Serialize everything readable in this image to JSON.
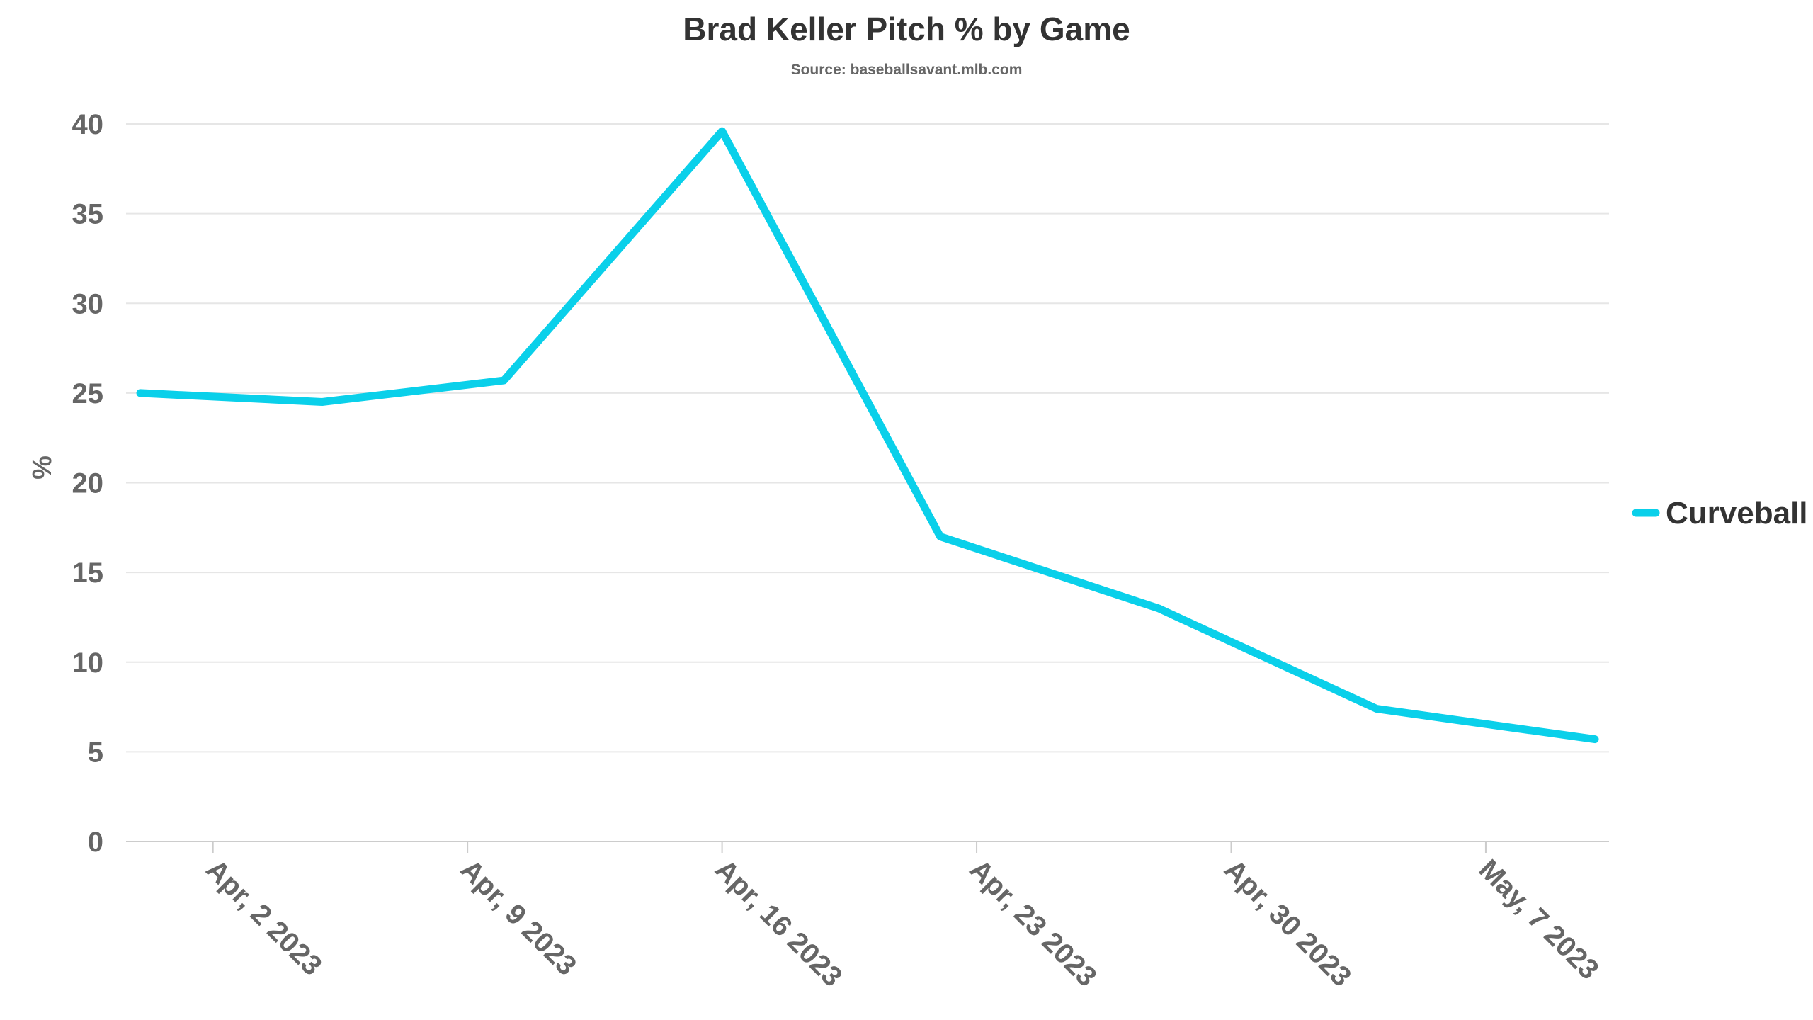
{
  "chart_data": {
    "type": "line",
    "title": "Brad Keller Pitch % by Game",
    "subtitle": "Source: baseballsavant.mlb.com",
    "xlabel": "",
    "ylabel": "%",
    "x_axis_type": "datetime",
    "xlim": [
      "2023-03-31",
      "2023-05-10"
    ],
    "ylim": [
      0,
      40
    ],
    "y_ticks": [
      0,
      5,
      10,
      15,
      20,
      25,
      30,
      35,
      40
    ],
    "x_ticks": [
      {
        "date": "2023-04-02",
        "label": "Apr, 2 2023"
      },
      {
        "date": "2023-04-09",
        "label": "Apr, 9 2023"
      },
      {
        "date": "2023-04-16",
        "label": "Apr, 16 2023"
      },
      {
        "date": "2023-04-23",
        "label": "Apr, 23 2023"
      },
      {
        "date": "2023-04-30",
        "label": "Apr, 30 2023"
      },
      {
        "date": "2023-05-07",
        "label": "May, 7 2023"
      }
    ],
    "grid": true,
    "legend_position": "right",
    "series": [
      {
        "name": "Curveball",
        "color": "#0ad0ea",
        "points": [
          {
            "x": "2023-03-31",
            "y": 25.0
          },
          {
            "x": "2023-04-05",
            "y": 24.5
          },
          {
            "x": "2023-04-10",
            "y": 25.7
          },
          {
            "x": "2023-04-16",
            "y": 39.6
          },
          {
            "x": "2023-04-22",
            "y": 17.0
          },
          {
            "x": "2023-04-28",
            "y": 13.0
          },
          {
            "x": "2023-05-04",
            "y": 7.4
          },
          {
            "x": "2023-05-10",
            "y": 5.7
          }
        ]
      }
    ]
  }
}
